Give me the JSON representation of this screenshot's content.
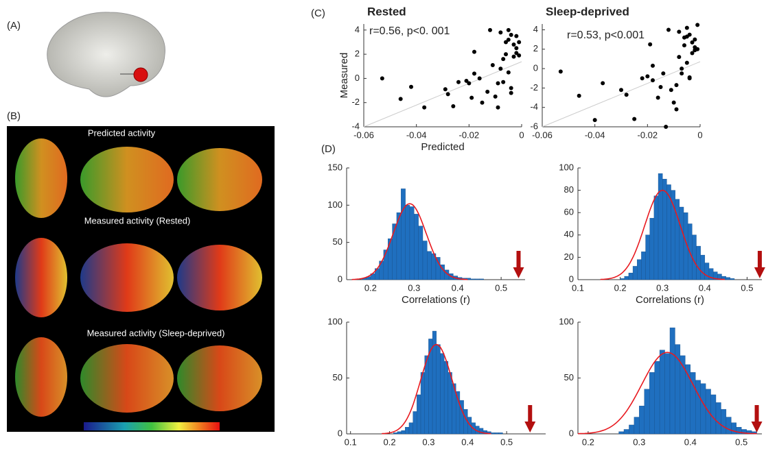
{
  "panels": {
    "a": "(A)",
    "b": "(B)",
    "c": "(C)",
    "d": "(D)",
    "b_texts": [
      "Predicted activity",
      "Measured activity (Rested)",
      "Measured activity (Sleep-deprived)"
    ]
  },
  "chart_data": [
    {
      "type": "scatter",
      "title": "Rested",
      "annotation": "r=0.56, p<0. 001",
      "xlabel": "Predicted",
      "ylabel": "Measured",
      "color": "#000000",
      "x": [
        -0.053,
        -0.046,
        -0.042,
        -0.037,
        -0.029,
        -0.028,
        -0.026,
        -0.024,
        -0.021,
        -0.02,
        -0.019,
        -0.018,
        -0.016,
        -0.015,
        -0.013,
        -0.012,
        -0.011,
        -0.01,
        -0.009,
        -0.008,
        -0.008,
        -0.007,
        -0.006,
        -0.006,
        -0.005,
        -0.005,
        -0.004,
        -0.004,
        -0.003,
        -0.003,
        -0.002,
        -0.002,
        -0.001,
        -0.001,
        -0.009,
        -0.007,
        -0.004,
        -0.002,
        -0.018,
        -0.005
      ],
      "values": [
        0,
        -1.7,
        -0.7,
        -2.4,
        -0.9,
        -1.3,
        -2.3,
        -0.3,
        -0.2,
        -0.4,
        -1.6,
        2.2,
        0,
        -2,
        -1.1,
        4,
        1.1,
        -1.5,
        -2.4,
        0.8,
        3.8,
        -0.3,
        2,
        3,
        4,
        0.5,
        3.6,
        -0.8,
        2.8,
        1.8,
        3.5,
        2.5,
        3,
        1.9,
        -0.4,
        1.6,
        -1.2,
        2.1,
        0.4,
        3.2
      ],
      "xlim": [
        -0.06,
        0
      ],
      "xticks": [
        -0.06,
        -0.04,
        -0.02,
        0
      ],
      "ylim": [
        -4,
        4.5
      ],
      "yticks": [
        -4,
        -2,
        0,
        2,
        4
      ]
    },
    {
      "type": "scatter",
      "title": "Sleep-deprived",
      "annotation": "r=0.53, p<0.001",
      "color": "#000000",
      "x": [
        -0.053,
        -0.046,
        -0.04,
        -0.037,
        -0.03,
        -0.028,
        -0.025,
        -0.022,
        -0.02,
        -0.019,
        -0.018,
        -0.016,
        -0.015,
        -0.014,
        -0.013,
        -0.012,
        -0.011,
        -0.01,
        -0.009,
        -0.008,
        -0.008,
        -0.007,
        -0.006,
        -0.006,
        -0.005,
        -0.005,
        -0.004,
        -0.004,
        -0.003,
        -0.003,
        -0.002,
        -0.002,
        -0.001,
        -0.001,
        -0.009,
        -0.007,
        -0.004,
        -0.002,
        -0.018,
        -0.005
      ],
      "values": [
        -0.3,
        -2.8,
        -5.3,
        -1.5,
        -2.2,
        -2.7,
        -5.2,
        -1,
        -0.8,
        2.5,
        -1.2,
        -3,
        -1.9,
        -0.5,
        -6,
        4,
        -2.2,
        -3.5,
        -4.2,
        1.2,
        3.8,
        -0.5,
        2.4,
        3.2,
        4.2,
        0.6,
        3.5,
        -1,
        2.7,
        1.6,
        3,
        2.2,
        4.5,
        2,
        -1.7,
        0,
        -0.9,
        1.9,
        0.3,
        3.3
      ],
      "xlim": [
        -0.06,
        0
      ],
      "xticks": [
        -0.06,
        -0.04,
        -0.02,
        0
      ],
      "ylim": [
        -6,
        4.6
      ],
      "yticks": [
        -6,
        -4,
        -2,
        0,
        2,
        4
      ]
    },
    {
      "type": "histogram",
      "xlabel": "Correlations (r)",
      "color": "#1f6fbf",
      "fit_color": "#e8191f",
      "arrow_color": "#b30f0f",
      "bins": [
        0.18,
        0.19,
        0.2,
        0.21,
        0.22,
        0.23,
        0.24,
        0.25,
        0.26,
        0.27,
        0.28,
        0.29,
        0.3,
        0.31,
        0.32,
        0.33,
        0.34,
        0.35,
        0.36,
        0.37,
        0.38,
        0.39,
        0.4,
        0.41,
        0.42,
        0.43,
        0.44,
        0.45,
        0.46
      ],
      "values": [
        2,
        4,
        8,
        15,
        25,
        40,
        55,
        75,
        90,
        122,
        100,
        98,
        88,
        72,
        52,
        38,
        35,
        30,
        20,
        13,
        8,
        5,
        3,
        2,
        2,
        1,
        1,
        1
      ],
      "fit_mean": 0.29,
      "fit_sd": 0.038,
      "fit_peak": 102,
      "observed": 0.54,
      "xlim": [
        0.145,
        0.555
      ],
      "xticks": [
        0.2,
        0.3,
        0.4,
        0.5
      ],
      "ylim": [
        0,
        150
      ],
      "yticks": [
        0,
        50,
        100,
        150
      ]
    },
    {
      "type": "histogram",
      "xlabel": "Correlations (r)",
      "color": "#1f6fbf",
      "fit_color": "#e8191f",
      "arrow_color": "#b30f0f",
      "bins": [
        0.2,
        0.21,
        0.22,
        0.23,
        0.24,
        0.25,
        0.26,
        0.27,
        0.28,
        0.29,
        0.3,
        0.31,
        0.32,
        0.33,
        0.34,
        0.35,
        0.36,
        0.37,
        0.38,
        0.39,
        0.4,
        0.41,
        0.42,
        0.43,
        0.44,
        0.45,
        0.46,
        0.47
      ],
      "values": [
        1,
        3,
        6,
        12,
        18,
        25,
        40,
        55,
        75,
        95,
        90,
        85,
        80,
        72,
        65,
        60,
        50,
        40,
        30,
        22,
        15,
        10,
        7,
        5,
        3,
        2,
        1
      ],
      "fit_mean": 0.3,
      "fit_sd": 0.042,
      "fit_peak": 80,
      "observed": 0.53,
      "xlim": [
        0.1,
        0.535
      ],
      "xticks": [
        0.1,
        0.2,
        0.3,
        0.4,
        0.5
      ],
      "ylim": [
        0,
        100
      ],
      "yticks": [
        0,
        20,
        40,
        60,
        80,
        100
      ]
    },
    {
      "type": "histogram",
      "color": "#1f6fbf",
      "fit_color": "#e8191f",
      "arrow_color": "#b30f0f",
      "bins": [
        0.21,
        0.22,
        0.23,
        0.24,
        0.25,
        0.26,
        0.27,
        0.28,
        0.29,
        0.3,
        0.31,
        0.32,
        0.33,
        0.34,
        0.35,
        0.36,
        0.37,
        0.38,
        0.39,
        0.4,
        0.41,
        0.42,
        0.43,
        0.44,
        0.45,
        0.46,
        0.47,
        0.48,
        0.49
      ],
      "values": [
        1,
        2,
        3,
        6,
        10,
        20,
        35,
        55,
        70,
        85,
        92,
        80,
        72,
        65,
        55,
        45,
        38,
        30,
        22,
        15,
        10,
        7,
        5,
        3,
        2,
        1,
        1,
        1
      ],
      "fit_mean": 0.32,
      "fit_sd": 0.04,
      "fit_peak": 80,
      "observed": 0.56,
      "xlim": [
        0.09,
        0.6
      ],
      "xticks": [
        0.1,
        0.2,
        0.3,
        0.4,
        0.5
      ],
      "ylim": [
        0,
        100
      ],
      "yticks": [
        0,
        50,
        100
      ]
    },
    {
      "type": "histogram",
      "color": "#1f6fbf",
      "fit_color": "#e8191f",
      "arrow_color": "#b30f0f",
      "bins": [
        0.26,
        0.27,
        0.28,
        0.29,
        0.3,
        0.31,
        0.32,
        0.33,
        0.34,
        0.35,
        0.36,
        0.37,
        0.38,
        0.39,
        0.4,
        0.41,
        0.42,
        0.43,
        0.44,
        0.45,
        0.46,
        0.47,
        0.48,
        0.49,
        0.5,
        0.51,
        0.52,
        0.53
      ],
      "values": [
        2,
        4,
        8,
        15,
        25,
        40,
        55,
        65,
        75,
        72,
        95,
        80,
        70,
        62,
        55,
        48,
        45,
        40,
        35,
        28,
        22,
        15,
        10,
        6,
        4,
        3,
        2
      ],
      "fit_mean": 0.355,
      "fit_sd": 0.05,
      "fit_peak": 73,
      "observed": 0.53,
      "xlim": [
        0.18,
        0.54
      ],
      "xticks": [
        0.2,
        0.3,
        0.4,
        0.5
      ],
      "ylim": [
        0,
        100
      ],
      "yticks": [
        0,
        50,
        100
      ]
    }
  ]
}
